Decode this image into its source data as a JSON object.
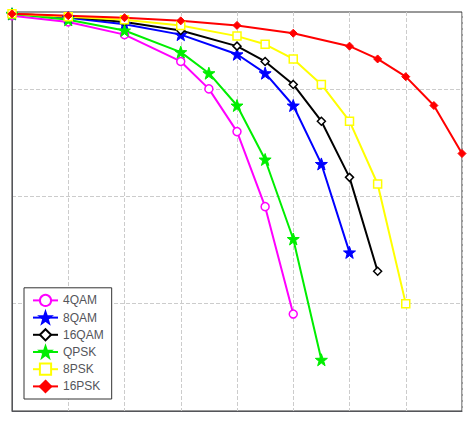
{
  "chart_data": {
    "type": "line",
    "log": "y",
    "grid": true,
    "legend": "lower left",
    "tick_labels": false,
    "xlim": [
      -2,
      14
    ],
    "xticks": [
      -2,
      0,
      2,
      4,
      6,
      8,
      10,
      12,
      14
    ],
    "ylim": [
      0.0001,
      0.52
    ],
    "yticks": [
      0.0001,
      0.001,
      0.01,
      0.1
    ],
    "series": [
      {
        "name": "4QAM",
        "color": "#ff00ff",
        "marker": "open circle",
        "x": [
          -2,
          0,
          2,
          4,
          5,
          6,
          7,
          8
        ],
        "values": [
          0.48,
          0.42,
          0.32,
          0.18,
          0.1,
          0.04,
          0.008,
          0.0008
        ]
      },
      {
        "name": "8QAM",
        "color": "#0000ff",
        "marker": "star",
        "x": [
          -2,
          0,
          2,
          4,
          6,
          7,
          8,
          9,
          10
        ],
        "values": [
          0.5,
          0.46,
          0.4,
          0.32,
          0.21,
          0.14,
          0.07,
          0.02,
          0.003
        ]
      },
      {
        "name": "16QAM",
        "color": "#000000",
        "marker": "open diamond",
        "x": [
          -2,
          0,
          2,
          4,
          6,
          7,
          8,
          9,
          10,
          11
        ],
        "values": [
          0.5,
          0.47,
          0.42,
          0.35,
          0.25,
          0.18,
          0.11,
          0.05,
          0.015,
          0.002
        ]
      },
      {
        "name": "QPSK",
        "color": "#00ee00",
        "marker": "star",
        "x": [
          -2,
          0,
          2,
          4,
          5,
          6,
          7,
          8,
          9
        ],
        "values": [
          0.5,
          0.44,
          0.35,
          0.22,
          0.14,
          0.07,
          0.022,
          0.004,
          0.0003
        ]
      },
      {
        "name": "8PSK",
        "color": "#ffff00",
        "marker": "open square",
        "x": [
          -2,
          0,
          2,
          4,
          6,
          7,
          8,
          9,
          10,
          11,
          12
        ],
        "values": [
          0.5,
          0.47,
          0.44,
          0.39,
          0.31,
          0.26,
          0.19,
          0.11,
          0.05,
          0.013,
          0.001
        ]
      },
      {
        "name": "16PSK",
        "color": "#ff0000",
        "marker": "diamond",
        "x": [
          -2,
          0,
          2,
          4,
          6,
          8,
          10,
          11,
          12,
          13,
          14
        ],
        "values": [
          0.5,
          0.48,
          0.46,
          0.43,
          0.39,
          0.33,
          0.25,
          0.19,
          0.13,
          0.07,
          0.025
        ]
      }
    ]
  }
}
